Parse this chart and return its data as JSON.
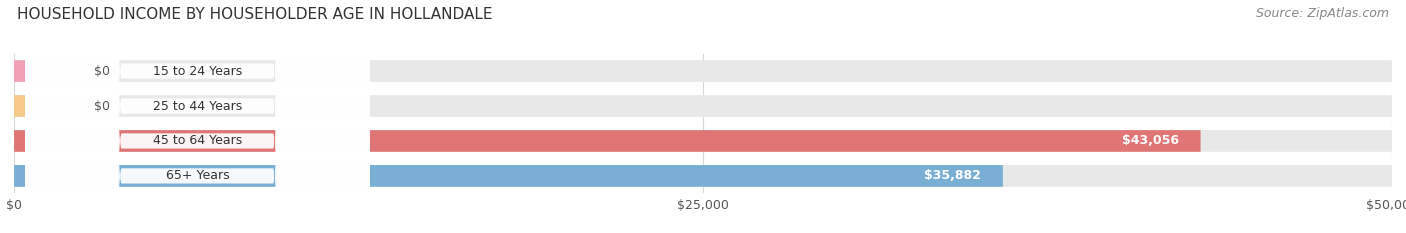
{
  "title": "HOUSEHOLD INCOME BY HOUSEHOLDER AGE IN HOLLANDALE",
  "source": "Source: ZipAtlas.com",
  "categories": [
    "15 to 24 Years",
    "25 to 44 Years",
    "45 to 64 Years",
    "65+ Years"
  ],
  "values": [
    0,
    0,
    43056,
    35882
  ],
  "bar_colors": [
    "#f2a0b5",
    "#f5c98a",
    "#e07575",
    "#7aafd4"
  ],
  "bar_bg_color": "#e8e8e8",
  "bar_label_texts": [
    "$0",
    "$0",
    "$43,056",
    "$35,882"
  ],
  "xlim": [
    0,
    50000
  ],
  "xticks": [
    0,
    25000,
    50000
  ],
  "xticklabels": [
    "$0",
    "$25,000",
    "$50,000"
  ],
  "title_fontsize": 11,
  "source_fontsize": 9,
  "tick_fontsize": 9,
  "bar_label_fontsize": 9,
  "category_fontsize": 9,
  "background_color": "#ffffff",
  "bar_height": 0.62,
  "pill_bg": "#ffffff",
  "grid_color": "#d8d8d8"
}
